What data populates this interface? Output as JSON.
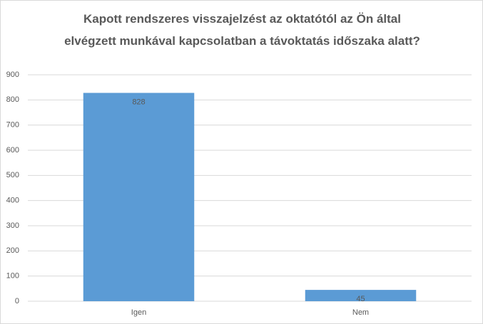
{
  "chart_data": {
    "type": "bar",
    "title": "Kapott rendszeres visszajelzést az oktatótól az Ön által elvégzett munkával kapcsolatban a távoktatás időszaka alatt?",
    "categories": [
      "Igen",
      "Nem"
    ],
    "values": [
      828,
      45
    ],
    "color": "#5b9bd5",
    "ylim": [
      0,
      900
    ],
    "yticks": [
      0,
      100,
      200,
      300,
      400,
      500,
      600,
      700,
      800,
      900
    ],
    "grid": true
  }
}
